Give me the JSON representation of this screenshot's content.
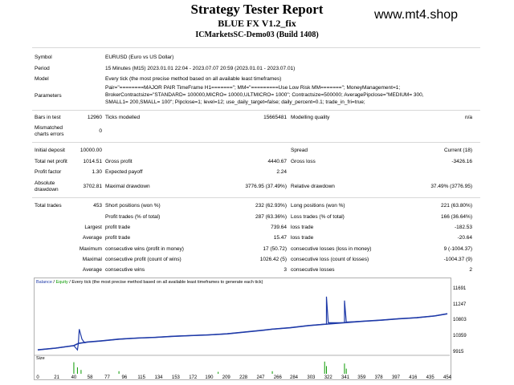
{
  "header": {
    "title": "Strategy Tester Report",
    "ea_name": "BLUE FX V1.2_fix",
    "account": "ICMarketsSC-Demo03 (Build 1408)",
    "watermark": "www.mt4.shop"
  },
  "settings": {
    "symbol_label": "Symbol",
    "symbol": "EURUSD (Euro vs US Dollar)",
    "period_label": "Period",
    "period": "15 Minutes (M15) 2023.01.01 22:04 - 2023.07.07 20:59 (2023.01.01 - 2023.07.01)",
    "model_label": "Model",
    "model": "Every tick (the most precise method based on all available least timeframes)",
    "parameters_label": "Parameters",
    "parameters_line1": "Pair=\"========MAJOR PAIR TimeFrame H1=======\"; MM=\"=========Use Low Risk MM=======\"; MoneyManagement=1;",
    "parameters_line2": "BrokerContractsize=\"STANDARD= 100000,MICRO= 10000,ULTMICRO= 1000\"; Contractsize=500000; AveragePipclose=\"MEDIUM= 300,",
    "parameters_line3": "SMALL1= 200,SMALL= 100\"; Pipclose=1; level=12; use_daily_target=false; daily_percent=0.1; trade_in_fri=true;"
  },
  "quality": {
    "bars_label": "Bars in test",
    "bars": "12960",
    "ticks_label": "Ticks modelled",
    "ticks": "15665481",
    "mq_label": "Modelling quality",
    "mq": "n/a",
    "mismatch_label_1": "Mismatched",
    "mismatch_label_2": "charts errors",
    "mismatch": "0"
  },
  "results": {
    "initial_deposit_label": "Initial deposit",
    "initial_deposit": "10000.00",
    "spread_label": "Spread",
    "spread": "Current (18)",
    "net_profit_label": "Total net profit",
    "net_profit": "1014.51",
    "gross_profit_label": "Gross profit",
    "gross_profit": "4440.67",
    "gross_loss_label": "Gross loss",
    "gross_loss": "-3426.16",
    "profit_factor_label": "Profit factor",
    "profit_factor": "1.30",
    "expected_payoff_label": "Expected payoff",
    "expected_payoff": "2.24",
    "abs_dd_label_1": "Absolute",
    "abs_dd_label_2": "drawdown",
    "abs_dd": "3702.81",
    "max_dd_label": "Maximal drawdown",
    "max_dd": "3776.95 (37.49%)",
    "rel_dd_label": "Relative drawdown",
    "rel_dd": "37.49% (3776.95)"
  },
  "trades": {
    "total_label": "Total trades",
    "total": "453",
    "short_label": "Short positions (won %)",
    "short": "232 (62.93%)",
    "long_label": "Long positions (won %)",
    "long": "221 (63.80%)",
    "profit_trades_label": "Profit trades (% of total)",
    "profit_trades": "287 (63.36%)",
    "loss_trades_label": "Loss trades (% of total)",
    "loss_trades": "166 (36.64%)",
    "largest": "Largest",
    "average": "Average",
    "maximum": "Maximum",
    "maximal": "Maximal",
    "profit_trade_label": "profit trade",
    "largest_profit": "739.64",
    "average_profit": "15.47",
    "loss_trade_label": "loss trade",
    "largest_loss": "-182.53",
    "average_loss": "-20.64",
    "cons_wins_label": "consecutive wins (profit in money)",
    "cons_wins": "17 (50.72)",
    "cons_losses_label": "consecutive losses (loss in money)",
    "cons_losses": "9 (-1004.37)",
    "cons_profit_label": "consecutive profit (count of wins)",
    "cons_profit": "1026.42 (5)",
    "cons_loss_label": "consecutive loss (count of losses)",
    "cons_loss": "-1004.37 (9)",
    "avg_wins_label": "consecutive wins",
    "avg_wins": "3",
    "avg_losses_label": "consecutive losses",
    "avg_losses": "2"
  },
  "chart_data": {
    "type": "line",
    "header_balance": "Balance",
    "header_sep": " / ",
    "header_equity": "Equity",
    "header_rest": " / Every tick (the most precise method based on all available least timeframes to generate each tick)",
    "size_label": "Size",
    "series_colors": {
      "balance": "#1f3aa8",
      "equity": "#1f3aa8",
      "size": "#0a9a00"
    },
    "ylim": [
      9915,
      11800
    ],
    "yticks": [
      "11691",
      "11247",
      "10803",
      "10359",
      "9915"
    ],
    "xticks": [
      "0",
      "21",
      "40",
      "58",
      "77",
      "96",
      "115",
      "134",
      "153",
      "172",
      "190",
      "209",
      "228",
      "247",
      "266",
      "284",
      "303",
      "322",
      "341",
      "359",
      "378",
      "397",
      "416",
      "435",
      "454"
    ],
    "balance": [
      [
        0,
        10000
      ],
      [
        20,
        10050
      ],
      [
        40,
        10120
      ],
      [
        45,
        10180
      ],
      [
        55,
        10220
      ],
      [
        70,
        10250
      ],
      [
        90,
        10300
      ],
      [
        110,
        10330
      ],
      [
        130,
        10350
      ],
      [
        150,
        10380
      ],
      [
        170,
        10400
      ],
      [
        190,
        10420
      ],
      [
        210,
        10450
      ],
      [
        230,
        10500
      ],
      [
        250,
        10550
      ],
      [
        260,
        10580
      ],
      [
        280,
        10620
      ],
      [
        300,
        10680
      ],
      [
        320,
        10720
      ],
      [
        340,
        10760
      ],
      [
        360,
        10800
      ],
      [
        380,
        10830
      ],
      [
        400,
        10870
      ],
      [
        420,
        10900
      ],
      [
        440,
        10950
      ],
      [
        454,
        11010
      ]
    ],
    "equity_spikes": [
      [
        44,
        10000
      ],
      [
        46,
        10580
      ],
      [
        49,
        10300
      ],
      [
        52,
        10200
      ],
      [
        318,
        10720
      ],
      [
        320,
        11490
      ],
      [
        322,
        10760
      ],
      [
        338,
        10760
      ],
      [
        340,
        11380
      ],
      [
        342,
        10780
      ]
    ],
    "size_spikes": [
      [
        40,
        0.9
      ],
      [
        44,
        0.5
      ],
      [
        48,
        0.3
      ],
      [
        318,
        0.95
      ],
      [
        320,
        0.6
      ],
      [
        340,
        0.8
      ],
      [
        342,
        0.4
      ],
      [
        90,
        0.2
      ],
      [
        200,
        0.15
      ],
      [
        260,
        0.2
      ]
    ]
  }
}
